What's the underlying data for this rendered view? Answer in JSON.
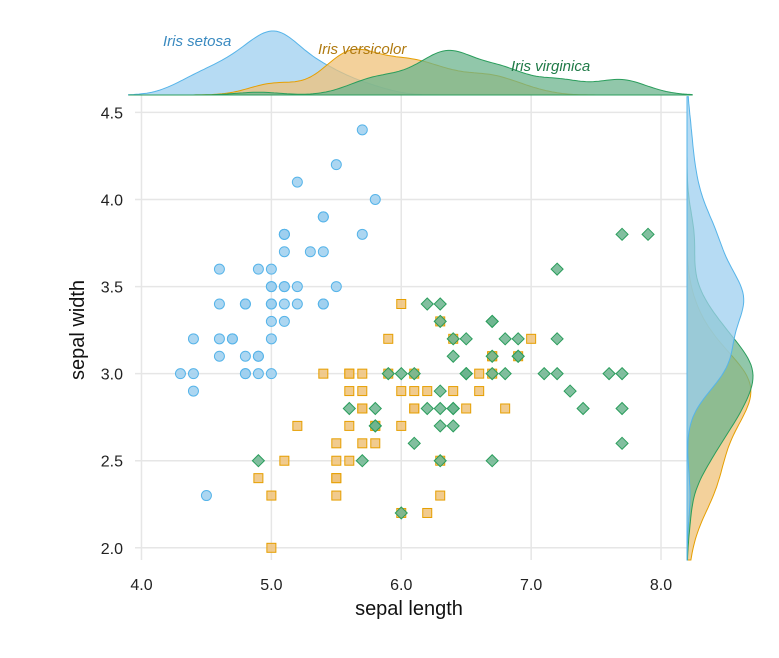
{
  "chart_data": {
    "type": "scatter",
    "xlabel": "sepal length",
    "ylabel": "sepal width",
    "xlim": [
      3.95,
      8.2
    ],
    "ylim": [
      1.93,
      4.6
    ],
    "x_ticks": [
      4.0,
      5.0,
      6.0,
      7.0,
      8.0
    ],
    "x_tick_labels": [
      "4.0",
      "5.0",
      "6.0",
      "7.0",
      "8.0"
    ],
    "y_ticks": [
      2.0,
      2.5,
      3.0,
      3.5,
      4.0,
      4.5
    ],
    "y_tick_labels": [
      "2.0",
      "2.5",
      "3.0",
      "3.5",
      "4.0",
      "4.5"
    ],
    "grid": true,
    "marginal_densities": "top (sepal length) and right (sepal width)",
    "series": [
      {
        "name": "Iris setosa",
        "marker": "circle",
        "color": "#56B4E9",
        "points": [
          [
            5.1,
            3.5
          ],
          [
            4.9,
            3.0
          ],
          [
            4.7,
            3.2
          ],
          [
            4.6,
            3.1
          ],
          [
            5.0,
            3.6
          ],
          [
            5.4,
            3.9
          ],
          [
            4.6,
            3.4
          ],
          [
            5.0,
            3.4
          ],
          [
            4.4,
            2.9
          ],
          [
            4.9,
            3.1
          ],
          [
            5.4,
            3.7
          ],
          [
            4.8,
            3.4
          ],
          [
            4.8,
            3.0
          ],
          [
            4.3,
            3.0
          ],
          [
            5.8,
            4.0
          ],
          [
            5.7,
            4.4
          ],
          [
            5.4,
            3.9
          ],
          [
            5.1,
            3.5
          ],
          [
            5.7,
            3.8
          ],
          [
            5.1,
            3.8
          ],
          [
            5.4,
            3.4
          ],
          [
            5.1,
            3.7
          ],
          [
            4.6,
            3.6
          ],
          [
            5.1,
            3.3
          ],
          [
            4.8,
            3.4
          ],
          [
            5.0,
            3.0
          ],
          [
            5.0,
            3.4
          ],
          [
            5.2,
            3.5
          ],
          [
            5.2,
            3.4
          ],
          [
            4.7,
            3.2
          ],
          [
            4.8,
            3.1
          ],
          [
            5.4,
            3.4
          ],
          [
            5.2,
            4.1
          ],
          [
            5.5,
            4.2
          ],
          [
            4.9,
            3.1
          ],
          [
            5.0,
            3.2
          ],
          [
            5.5,
            3.5
          ],
          [
            4.9,
            3.6
          ],
          [
            4.4,
            3.0
          ],
          [
            5.1,
            3.4
          ],
          [
            5.0,
            3.5
          ],
          [
            4.5,
            2.3
          ],
          [
            4.4,
            3.2
          ],
          [
            5.0,
            3.5
          ],
          [
            5.1,
            3.8
          ],
          [
            4.8,
            3.0
          ],
          [
            5.1,
            3.8
          ],
          [
            4.6,
            3.2
          ],
          [
            5.3,
            3.7
          ],
          [
            5.0,
            3.3
          ]
        ]
      },
      {
        "name": "Iris versicolor",
        "marker": "square",
        "color": "#E69F00",
        "points": [
          [
            7.0,
            3.2
          ],
          [
            6.4,
            3.2
          ],
          [
            6.9,
            3.1
          ],
          [
            5.5,
            2.3
          ],
          [
            6.5,
            2.8
          ],
          [
            5.7,
            2.8
          ],
          [
            6.3,
            3.3
          ],
          [
            4.9,
            2.4
          ],
          [
            6.6,
            2.9
          ],
          [
            5.2,
            2.7
          ],
          [
            5.0,
            2.0
          ],
          [
            5.9,
            3.0
          ],
          [
            6.0,
            2.2
          ],
          [
            6.1,
            2.9
          ],
          [
            5.6,
            2.9
          ],
          [
            6.7,
            3.1
          ],
          [
            5.6,
            3.0
          ],
          [
            5.8,
            2.7
          ],
          [
            6.2,
            2.2
          ],
          [
            5.6,
            2.5
          ],
          [
            5.9,
            3.2
          ],
          [
            6.1,
            2.8
          ],
          [
            6.3,
            2.5
          ],
          [
            6.1,
            2.8
          ],
          [
            6.4,
            2.9
          ],
          [
            6.6,
            3.0
          ],
          [
            6.8,
            2.8
          ],
          [
            6.7,
            3.0
          ],
          [
            6.0,
            2.9
          ],
          [
            5.7,
            2.6
          ],
          [
            5.5,
            2.4
          ],
          [
            5.5,
            2.4
          ],
          [
            5.8,
            2.7
          ],
          [
            6.0,
            2.7
          ],
          [
            5.4,
            3.0
          ],
          [
            6.0,
            3.4
          ],
          [
            6.7,
            3.1
          ],
          [
            6.3,
            2.3
          ],
          [
            5.6,
            3.0
          ],
          [
            5.5,
            2.5
          ],
          [
            5.5,
            2.6
          ],
          [
            6.1,
            3.0
          ],
          [
            5.8,
            2.6
          ],
          [
            5.0,
            2.3
          ],
          [
            5.6,
            2.7
          ],
          [
            5.7,
            3.0
          ],
          [
            5.7,
            2.9
          ],
          [
            6.2,
            2.9
          ],
          [
            5.1,
            2.5
          ],
          [
            5.7,
            2.8
          ]
        ]
      },
      {
        "name": "Iris virginica",
        "marker": "diamond",
        "color": "#2A9D5C",
        "points": [
          [
            6.3,
            3.3
          ],
          [
            5.8,
            2.7
          ],
          [
            7.1,
            3.0
          ],
          [
            6.3,
            2.9
          ],
          [
            6.5,
            3.0
          ],
          [
            7.6,
            3.0
          ],
          [
            4.9,
            2.5
          ],
          [
            7.3,
            2.9
          ],
          [
            6.7,
            2.5
          ],
          [
            7.2,
            3.6
          ],
          [
            6.5,
            3.2
          ],
          [
            6.4,
            2.7
          ],
          [
            6.8,
            3.0
          ],
          [
            5.7,
            2.5
          ],
          [
            5.8,
            2.8
          ],
          [
            6.4,
            3.2
          ],
          [
            6.5,
            3.0
          ],
          [
            7.7,
            3.8
          ],
          [
            7.7,
            2.6
          ],
          [
            6.0,
            2.2
          ],
          [
            6.9,
            3.2
          ],
          [
            5.6,
            2.8
          ],
          [
            7.7,
            2.8
          ],
          [
            6.3,
            2.7
          ],
          [
            6.7,
            3.3
          ],
          [
            7.2,
            3.2
          ],
          [
            6.2,
            2.8
          ],
          [
            6.1,
            3.0
          ],
          [
            6.4,
            2.8
          ],
          [
            7.2,
            3.0
          ],
          [
            7.4,
            2.8
          ],
          [
            7.9,
            3.8
          ],
          [
            6.4,
            2.8
          ],
          [
            6.3,
            2.8
          ],
          [
            6.1,
            2.6
          ],
          [
            7.7,
            3.0
          ],
          [
            6.3,
            3.4
          ],
          [
            6.4,
            3.1
          ],
          [
            6.0,
            3.0
          ],
          [
            6.9,
            3.1
          ],
          [
            6.7,
            3.1
          ],
          [
            6.9,
            3.1
          ],
          [
            5.8,
            2.7
          ],
          [
            6.8,
            3.2
          ],
          [
            6.7,
            3.3
          ],
          [
            6.7,
            3.0
          ],
          [
            6.3,
            2.5
          ],
          [
            6.5,
            3.0
          ],
          [
            6.2,
            3.4
          ],
          [
            5.9,
            3.0
          ]
        ]
      }
    ],
    "colors": {
      "grid": "#e6e6e6",
      "setosa_fill": "#9ecfef",
      "versicolor_fill": "#efc27a",
      "virginica_fill": "#6cb48e"
    }
  }
}
